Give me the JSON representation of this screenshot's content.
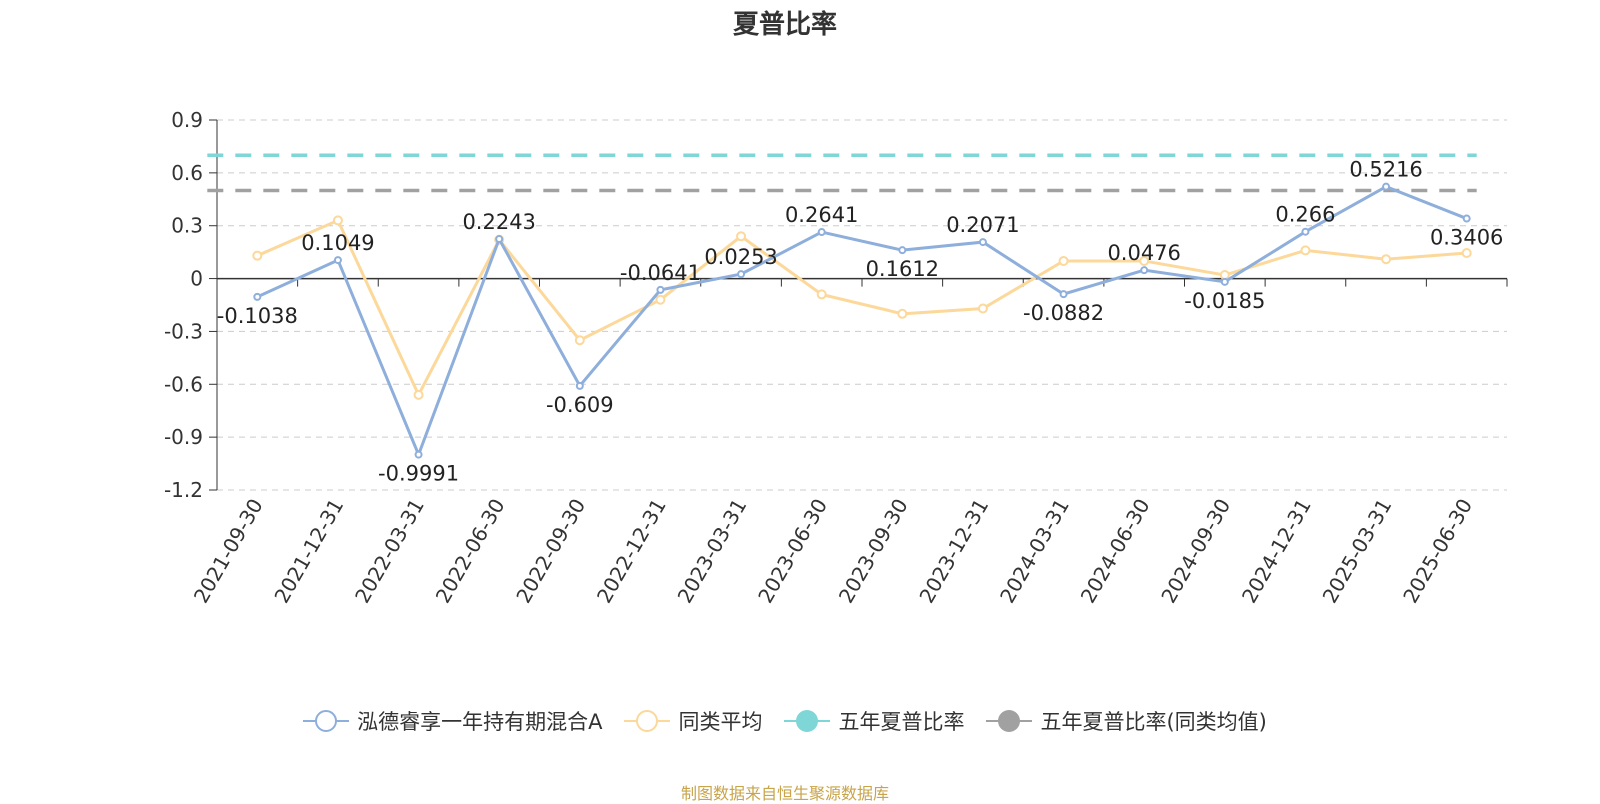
{
  "chart_data": {
    "type": "line",
    "title": "夏普比率",
    "categories": [
      "2021-09-30",
      "2021-12-31",
      "2022-03-31",
      "2022-06-30",
      "2022-09-30",
      "2022-12-31",
      "2023-03-31",
      "2023-06-30",
      "2023-09-30",
      "2023-12-31",
      "2024-03-31",
      "2024-06-30",
      "2024-09-30",
      "2024-12-31",
      "2025-03-31",
      "2025-06-30"
    ],
    "ylim": [
      -1.2,
      0.9
    ],
    "yticks": [
      0.9,
      0.6,
      0.3,
      0,
      -0.3,
      -0.6,
      -0.9,
      -1.2
    ],
    "grid": true,
    "legend_position": "bottom",
    "series": [
      {
        "name": "泓德睿享一年持有期混合A",
        "color": "#8eaedb",
        "values": [
          -0.1038,
          0.1049,
          -0.9991,
          0.2243,
          -0.609,
          -0.0641,
          0.0253,
          0.2641,
          0.1612,
          0.2071,
          -0.0882,
          0.0476,
          -0.0185,
          0.266,
          0.5216,
          0.3406
        ],
        "labels": [
          "-0.1038",
          "0.1049",
          "-0.9991",
          "0.2243",
          "-0.609",
          "-0.0641",
          "0.0253",
          "0.2641",
          "0.1612",
          "0.2071",
          "-0.0882",
          "0.0476",
          "-0.0185",
          "0.266",
          "0.5216",
          "0.3406"
        ]
      },
      {
        "name": "同类平均",
        "color": "#fcd89a",
        "values": [
          0.13,
          0.33,
          -0.66,
          0.22,
          -0.35,
          -0.12,
          0.24,
          -0.09,
          -0.2,
          -0.17,
          0.1,
          0.1,
          0.02,
          0.16,
          0.11,
          0.145
        ]
      },
      {
        "name": "五年夏普比率",
        "color": "#7fd6d6",
        "value": 0.7
      },
      {
        "name": "五年夏普比率(同类均值)",
        "color": "#a1a1a1",
        "value": 0.5
      }
    ]
  },
  "footer": {
    "source": "制图数据来自恒生聚源数据库"
  }
}
